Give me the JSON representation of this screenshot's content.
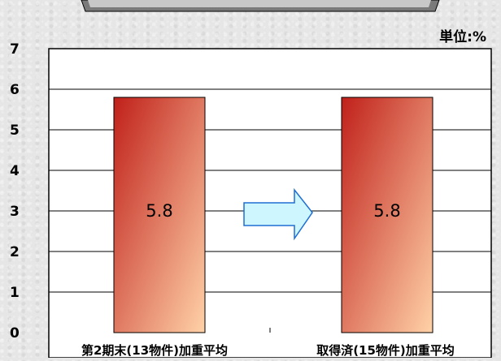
{
  "chart_data": {
    "type": "bar",
    "categories": [
      "第2期末(13物件)加重平均",
      "取得済(15物件)加重平均"
    ],
    "values": [
      5.8,
      5.8
    ],
    "value_labels": [
      "5.8",
      "5.8"
    ],
    "unit_label": "単位:%",
    "ylim": [
      0,
      7
    ],
    "yticks": [
      0,
      1,
      2,
      3,
      4,
      5,
      6,
      7
    ],
    "grid": true,
    "bar_gradient": [
      "#c0201a",
      "#ffd2a8"
    ],
    "arrow_color": "#cdf6ff",
    "arrow_stroke": "#1e6ed2"
  }
}
